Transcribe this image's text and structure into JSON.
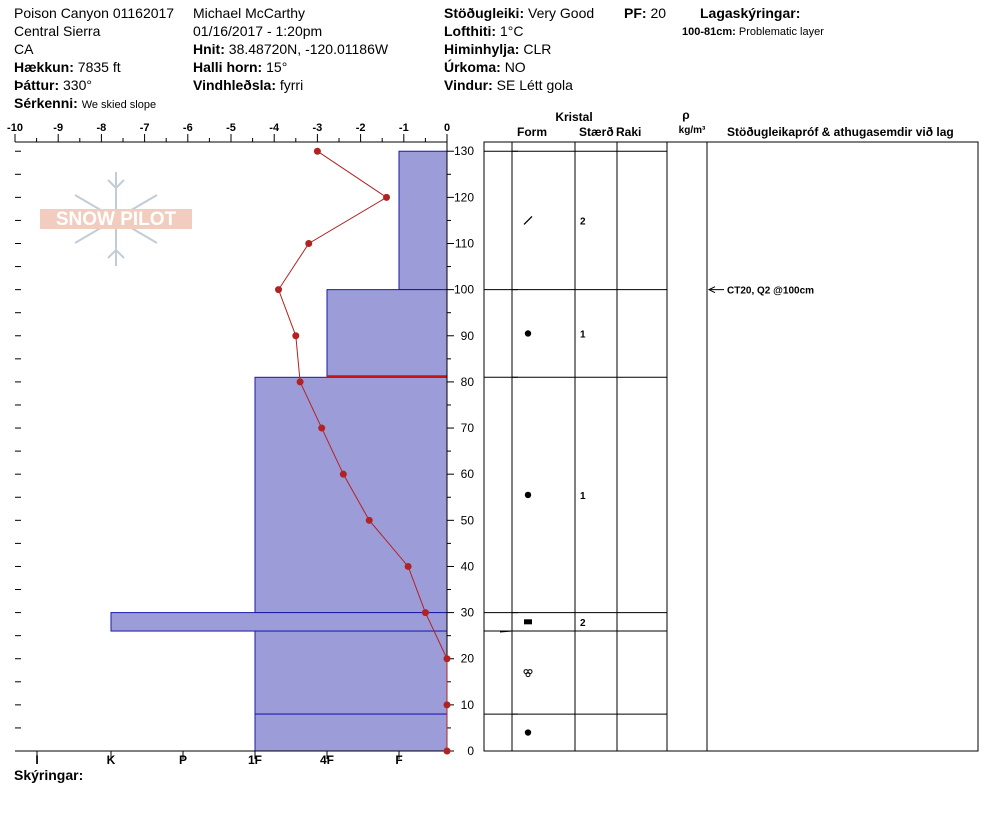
{
  "header": {
    "site": "Poison Canyon 01162017",
    "range": "Central Sierra",
    "state": "CA",
    "elevation_label": "Hækkun:",
    "elevation": "7835 ft",
    "aspect_label": "Þáttur:",
    "aspect": "330°",
    "features_label": "Sérkenni:",
    "features": "We skied slope",
    "observer": "Michael McCarthy",
    "datetime": "01/16/2017 - 1:20pm",
    "coords_label": "Hnit:",
    "coords": "38.48720N, -120.01186W",
    "slope_label": "Halli horn:",
    "slope": "15°",
    "wind_loading_label": "Vindhleðsla:",
    "wind_loading": "fyrri",
    "stability_label": "Stöðugleiki:",
    "stability": "Very Good",
    "pf_label": "PF:",
    "pf": "20",
    "air_temp_label": "Lofthiti:",
    "air_temp": "1°C",
    "sky_label": "Himinhylja:",
    "sky": "CLR",
    "precip_label": "Úrkoma:",
    "precip": "NO",
    "wind_label": "Vindur:",
    "wind": "SE Létt gola",
    "layer_notes_label": "Lagaskýringar:",
    "layer_note_range": "100-81cm:",
    "layer_note_text": "Problematic layer"
  },
  "logo": {
    "text": "SNOW PILOT"
  },
  "columns": {
    "crystal": "Kristal",
    "form": "Form",
    "size": "Stærð",
    "moisture": "Raki",
    "density_symbol": "ρ",
    "density_unit": "kg/m³",
    "tests": "Stöðugleikapróf & athugasemdir við lag"
  },
  "footer": {
    "notes_label": "Skýringar:"
  },
  "test_result": "CT20, Q2 @100cm",
  "chart_data": {
    "type": "line",
    "xlabel": "",
    "ylabel": "",
    "temp_axis": {
      "ticks": [
        -10,
        -9,
        -8,
        -7,
        -6,
        -5,
        -4,
        -3,
        -2,
        -1,
        0
      ],
      "range": [
        -10,
        0
      ]
    },
    "depth_axis": {
      "ticks": [
        0,
        10,
        20,
        30,
        40,
        50,
        60,
        70,
        80,
        90,
        100,
        110,
        120,
        130
      ],
      "range": [
        0,
        132
      ]
    },
    "hardness_axis": {
      "labels": [
        "I",
        "K",
        "P",
        "1F",
        "4F",
        "F"
      ]
    },
    "temperature_profile": {
      "depth": [
        130,
        120,
        110,
        100,
        90,
        80,
        70,
        60,
        50,
        40,
        30,
        20,
        10,
        0
      ],
      "temp": [
        -3.0,
        -1.4,
        -3.2,
        -3.9,
        -3.5,
        -3.4,
        -2.9,
        -2.4,
        -1.8,
        -0.9,
        -0.5,
        0,
        0,
        0
      ]
    },
    "hardness_layers": [
      {
        "top": 130,
        "bottom": 100,
        "hardness": "F"
      },
      {
        "top": 100,
        "bottom": 81,
        "hardness": "4F"
      },
      {
        "top": 81,
        "bottom": 30,
        "hardness": "1F"
      },
      {
        "top": 30,
        "bottom": 26,
        "hardness": "K"
      },
      {
        "top": 26,
        "bottom": 8,
        "hardness": "1F"
      },
      {
        "top": 8,
        "bottom": 0,
        "hardness": "1F"
      }
    ],
    "layer_boundaries": [
      130,
      100,
      81,
      30,
      26,
      8,
      0
    ],
    "problem_layer_boundary": 81,
    "test_depth": 100,
    "crystals": [
      {
        "depth": 115,
        "form": "precipitation-particle",
        "size": "2"
      },
      {
        "depth": 90.5,
        "form": "rounded-grain",
        "size": "1"
      },
      {
        "depth": 55.5,
        "form": "rounded-grain",
        "size": "1"
      },
      {
        "depth": 28,
        "form": "faceted",
        "size": "2"
      },
      {
        "depth": 17,
        "form": "melt-form",
        "size": ""
      },
      {
        "depth": 4,
        "form": "rounded-grain",
        "size": ""
      }
    ]
  }
}
